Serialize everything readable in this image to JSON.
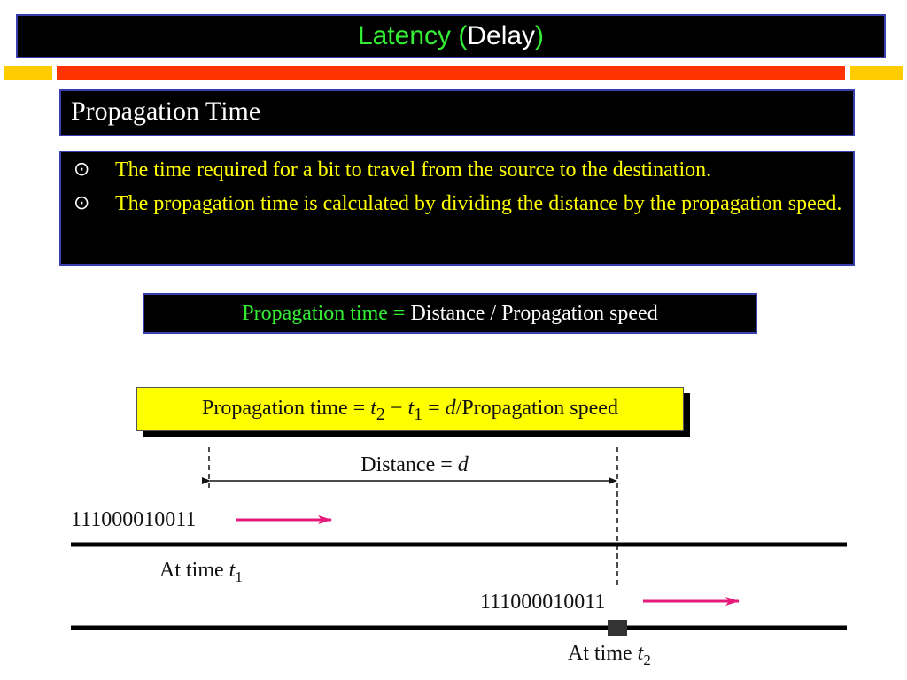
{
  "header": {
    "title_prefix": "Latency (",
    "title_word": "Delay",
    "title_suffix": ")"
  },
  "section": {
    "title": "Propagation Time"
  },
  "bullets": [
    "The time required for a bit to travel from the source to the destination.",
    "The propagation time is calculated by dividing the distance by the propagation speed."
  ],
  "bullet_glyph": "⊙",
  "formula": {
    "label": "Propagation time = ",
    "expression": "Distance / Propagation speed"
  },
  "diagram": {
    "equation_prefix": "Propagation time = ",
    "t2_var": "t",
    "t2_sub": "2",
    "minus": " − ",
    "t1_var": "t",
    "t1_sub": "1",
    "equals": " =  ",
    "d_var": "d",
    "equation_suffix": "/Propagation speed",
    "distance_label": "Distance = ",
    "distance_var": "d",
    "bits_1": "111000010011",
    "bits_2": "111000010011",
    "time1_label": "At time ",
    "time1_var": "t",
    "time1_sub": "1",
    "time2_label": "At time ",
    "time2_var": "t",
    "time2_sub": "2"
  },
  "colors": {
    "title_green": "#33ee33",
    "bullet_yellow": "#ffff00",
    "box_border": "#3a3fb0",
    "stripe_orange": "#ff3300",
    "stripe_yellow": "#ffcc00",
    "arrow_magenta": "#e6197a",
    "equation_box": "#ffff00"
  }
}
